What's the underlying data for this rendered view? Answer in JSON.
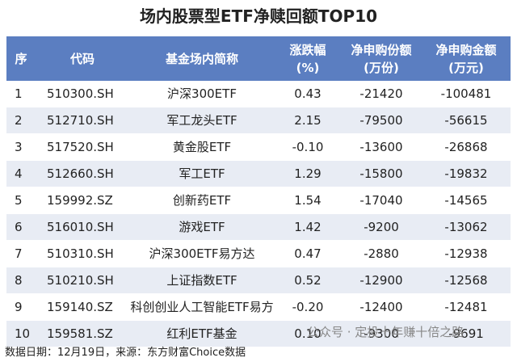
{
  "title": "场内股票型ETF净赎回额TOP10",
  "table": {
    "header": [
      [
        "序"
      ],
      [
        "代码"
      ],
      [
        "基金场内简称"
      ],
      [
        "涨跌幅",
        "(%)"
      ],
      [
        "净申购份额",
        "(万份)"
      ],
      [
        "净申购金额",
        "(万元)"
      ]
    ],
    "rows": [
      [
        "1",
        "510300.SH",
        "沪深300ETF",
        "0.43",
        "-21420",
        "-100481"
      ],
      [
        "2",
        "512710.SH",
        "军工龙头ETF",
        "2.15",
        "-79500",
        "-56615"
      ],
      [
        "3",
        "517520.SH",
        "黄金股ETF",
        "-0.10",
        "-13600",
        "-26868"
      ],
      [
        "4",
        "512660.SH",
        "军工ETF",
        "1.29",
        "-15800",
        "-19832"
      ],
      [
        "5",
        "159992.SZ",
        "创新药ETF",
        "1.54",
        "-17040",
        "-14565"
      ],
      [
        "6",
        "516010.SH",
        "游戏ETF",
        "1.42",
        "-9200",
        "-13062"
      ],
      [
        "7",
        "510310.SH",
        "沪深300ETF易方达",
        "0.47",
        "-2880",
        "-12938"
      ],
      [
        "8",
        "510210.SH",
        "上证指数ETF",
        "0.52",
        "-12900",
        "-12568"
      ],
      [
        "9",
        "159140.SZ",
        "科创创业人工智能ETF易方达",
        "-0.20",
        "-12400",
        "-12481"
      ],
      [
        "10",
        "159581.SZ",
        "红利ETF基金",
        "0.10",
        "-9300",
        "-9691"
      ]
    ]
  },
  "footer": "数据日期：12月19日，来源：东方财富Choice数据",
  "watermark": "公众号 · 定投十年赚十倍之路"
}
